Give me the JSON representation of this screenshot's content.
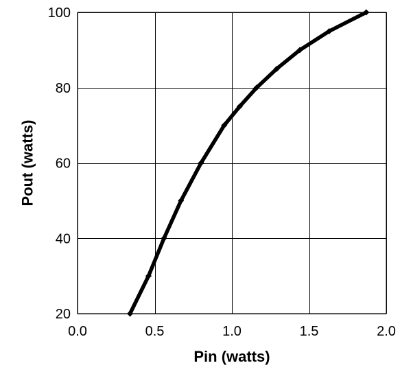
{
  "chart_data": {
    "type": "line",
    "title": "",
    "xlabel": "Pin (watts)",
    "ylabel": "Pout (watts)",
    "xlim": [
      0.0,
      2.0
    ],
    "ylim": [
      20,
      100
    ],
    "xticks": [
      0.0,
      0.5,
      1.0,
      1.5,
      2.0
    ],
    "xtick_labels": [
      "0.0",
      "0.5",
      "1.0",
      "1.5",
      "2.0"
    ],
    "yticks": [
      20,
      40,
      60,
      80,
      100
    ],
    "ytick_labels": [
      "20",
      "40",
      "60",
      "80",
      "100"
    ],
    "grid": true,
    "legend": "none",
    "series": [
      {
        "color": "#000000",
        "marker": "diamond",
        "x": [
          0.34,
          0.46,
          0.56,
          0.67,
          0.8,
          0.95,
          1.05,
          1.16,
          1.29,
          1.44,
          1.63,
          1.87
        ],
        "y": [
          20,
          30,
          40,
          50,
          60,
          70,
          75,
          80,
          85,
          90,
          95,
          100
        ]
      }
    ]
  }
}
